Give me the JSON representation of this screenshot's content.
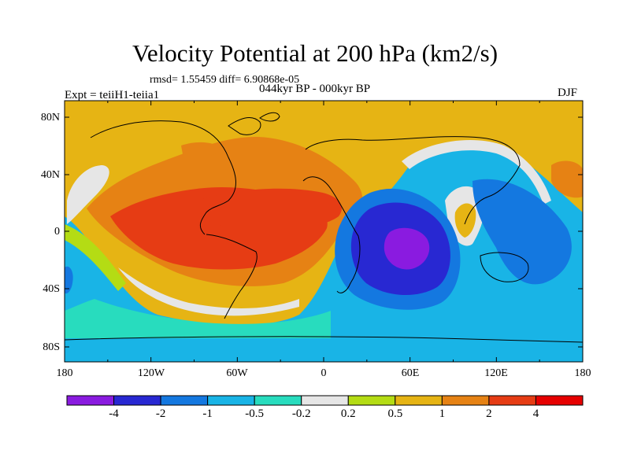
{
  "title": "Velocity Potential at 200 hPa (km2/s)",
  "stats": "rmsd= 1.55459 diff= 6.90868e-05",
  "experiment": "Expt = teiiH1-teiia1",
  "period": "044kyr BP - 000kyr BP",
  "season": "DJF",
  "lat_labels": [
    "80N",
    "40N",
    "0",
    "40S",
    "80S"
  ],
  "lon_labels": [
    "180",
    "120W",
    "60W",
    "0",
    "60E",
    "120E",
    "180"
  ],
  "colorbar": {
    "labels": [
      "-4",
      "-2",
      "-1",
      "-0.5",
      "-0.2",
      "0.2",
      "0.5",
      "1",
      "2",
      "4"
    ],
    "colors": [
      "#8a1be0",
      "#2828d2",
      "#1478e0",
      "#19b4e6",
      "#28dcbe",
      "#e6e6e6",
      "#b4dc14",
      "#e6b414",
      "#e68214",
      "#e63c14",
      "#e60000"
    ]
  }
}
